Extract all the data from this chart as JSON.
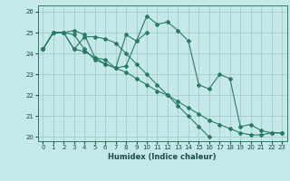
{
  "xlabel": "Humidex (Indice chaleur)",
  "xlim": [
    -0.5,
    23.5
  ],
  "ylim": [
    19.8,
    26.3
  ],
  "yticks": [
    20,
    21,
    22,
    23,
    24,
    25,
    26
  ],
  "xticks": [
    0,
    1,
    2,
    3,
    4,
    5,
    6,
    7,
    8,
    9,
    10,
    11,
    12,
    13,
    14,
    15,
    16,
    17,
    18,
    19,
    20,
    21,
    22,
    23
  ],
  "background_color": "#c5e8e8",
  "grid_color": "#aacfcf",
  "line_color": "#2a7a6a",
  "series": [
    [
      24.2,
      25.0,
      25.0,
      24.9,
      24.2,
      23.7,
      23.5,
      23.3,
      24.9,
      24.6,
      25.8,
      25.4,
      25.5,
      25.1,
      24.6,
      22.5,
      22.3,
      23.0,
      22.8,
      20.5,
      20.6,
      20.3,
      20.2,
      20.2
    ],
    [
      24.2,
      25.0,
      25.0,
      25.1,
      24.9,
      23.8,
      23.7,
      23.3,
      23.4,
      24.6,
      25.0,
      null,
      null,
      null,
      null,
      null,
      null,
      null,
      null,
      null,
      null,
      null,
      null,
      null
    ],
    [
      24.2,
      25.0,
      25.0,
      24.2,
      24.8,
      24.8,
      24.7,
      24.5,
      24.0,
      23.5,
      23.0,
      22.5,
      22.0,
      21.5,
      21.0,
      20.5,
      20.0,
      null,
      null,
      null,
      null,
      null,
      null,
      null
    ],
    [
      24.2,
      25.0,
      25.0,
      24.2,
      24.1,
      23.8,
      23.5,
      23.3,
      23.1,
      22.8,
      22.5,
      22.2,
      22.0,
      21.7,
      21.4,
      21.1,
      20.8,
      20.6,
      20.4,
      20.2,
      20.1,
      20.1,
      20.2,
      20.2
    ]
  ]
}
